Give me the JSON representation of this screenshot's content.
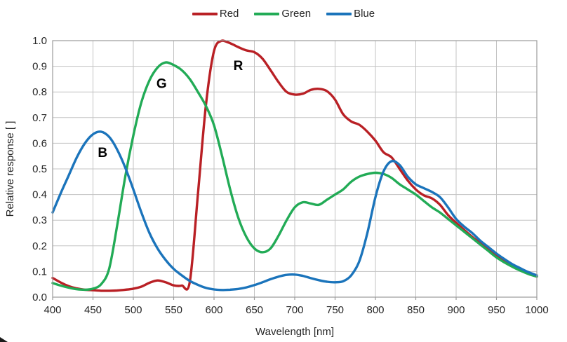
{
  "figure": {
    "legend": {
      "items": [
        {
          "label": "Red",
          "color": "#B92025"
        },
        {
          "label": "Green",
          "color": "#22AB56"
        },
        {
          "label": "Blue",
          "color": "#1B74BB"
        }
      ]
    },
    "x_axis": {
      "title": "Wavelength [nm]",
      "tick_labels": [
        "400",
        "450",
        "500",
        "550",
        "600",
        "650",
        "700",
        "750",
        "800",
        "850",
        "900",
        "950",
        "1000"
      ]
    },
    "y_axis": {
      "title": "Relative response [ ]",
      "tick_labels": [
        "0.0",
        "0.1",
        "0.2",
        "0.3",
        "0.4",
        "0.5",
        "0.6",
        "0.7",
        "0.8",
        "0.9",
        "1.0"
      ]
    },
    "annotations": [
      {
        "label": "B",
        "wavelength": 462,
        "response": 0.565
      },
      {
        "label": "G",
        "wavelength": 535,
        "response": 0.835
      },
      {
        "label": "R",
        "wavelength": 630,
        "response": 0.905
      }
    ],
    "colors": {
      "grid": "#C3C3C3",
      "plot_border": "#9B9B9B",
      "text": "#262626"
    }
  },
  "chart_data": {
    "type": "line",
    "title": "",
    "xlabel": "Wavelength [nm]",
    "ylabel": "Relative response [ ]",
    "xlim": [
      400,
      1000
    ],
    "ylim": [
      0.0,
      1.0
    ],
    "x_tick_step": 50,
    "y_tick_step": 0.1,
    "grid": true,
    "legend_position": "top-center",
    "x": [
      400,
      410,
      420,
      430,
      440,
      450,
      460,
      470,
      480,
      490,
      500,
      510,
      520,
      530,
      540,
      550,
      560,
      570,
      580,
      590,
      600,
      610,
      620,
      630,
      640,
      650,
      660,
      670,
      680,
      690,
      700,
      710,
      720,
      730,
      740,
      750,
      760,
      770,
      780,
      790,
      800,
      810,
      820,
      830,
      840,
      850,
      860,
      870,
      880,
      890,
      900,
      910,
      920,
      930,
      940,
      950,
      960,
      970,
      980,
      990,
      1000
    ],
    "series": [
      {
        "name": "Red",
        "color": "#B92025",
        "values": [
          0.075,
          0.057,
          0.043,
          0.034,
          0.029,
          0.027,
          0.025,
          0.025,
          0.026,
          0.029,
          0.033,
          0.041,
          0.056,
          0.065,
          0.058,
          0.046,
          0.045,
          0.06,
          0.4,
          0.75,
          0.96,
          1.0,
          0.99,
          0.975,
          0.962,
          0.955,
          0.93,
          0.885,
          0.838,
          0.8,
          0.79,
          0.793,
          0.808,
          0.812,
          0.803,
          0.77,
          0.713,
          0.685,
          0.672,
          0.645,
          0.61,
          0.565,
          0.545,
          0.5,
          0.455,
          0.42,
          0.397,
          0.385,
          0.36,
          0.32,
          0.29,
          0.262,
          0.235,
          0.21,
          0.185,
          0.162,
          0.14,
          0.122,
          0.106,
          0.092,
          0.08
        ]
      },
      {
        "name": "Green",
        "color": "#22AB56",
        "values": [
          0.055,
          0.045,
          0.037,
          0.031,
          0.029,
          0.033,
          0.05,
          0.11,
          0.28,
          0.47,
          0.63,
          0.76,
          0.845,
          0.895,
          0.915,
          0.905,
          0.885,
          0.85,
          0.8,
          0.745,
          0.67,
          0.55,
          0.42,
          0.31,
          0.235,
          0.19,
          0.175,
          0.19,
          0.24,
          0.3,
          0.35,
          0.37,
          0.365,
          0.36,
          0.38,
          0.4,
          0.42,
          0.45,
          0.47,
          0.48,
          0.485,
          0.48,
          0.465,
          0.44,
          0.42,
          0.4,
          0.375,
          0.35,
          0.33,
          0.305,
          0.28,
          0.255,
          0.23,
          0.205,
          0.18,
          0.155,
          0.135,
          0.118,
          0.103,
          0.09,
          0.08
        ]
      },
      {
        "name": "Blue",
        "color": "#1B74BB",
        "values": [
          0.33,
          0.405,
          0.475,
          0.545,
          0.6,
          0.635,
          0.645,
          0.625,
          0.575,
          0.505,
          0.42,
          0.33,
          0.25,
          0.19,
          0.145,
          0.11,
          0.085,
          0.063,
          0.048,
          0.036,
          0.03,
          0.028,
          0.029,
          0.032,
          0.038,
          0.047,
          0.058,
          0.07,
          0.08,
          0.087,
          0.088,
          0.083,
          0.074,
          0.066,
          0.06,
          0.058,
          0.062,
          0.085,
          0.14,
          0.25,
          0.39,
          0.49,
          0.53,
          0.515,
          0.47,
          0.44,
          0.425,
          0.41,
          0.39,
          0.35,
          0.305,
          0.275,
          0.25,
          0.22,
          0.195,
          0.17,
          0.148,
          0.128,
          0.112,
          0.097,
          0.085
        ]
      }
    ]
  }
}
